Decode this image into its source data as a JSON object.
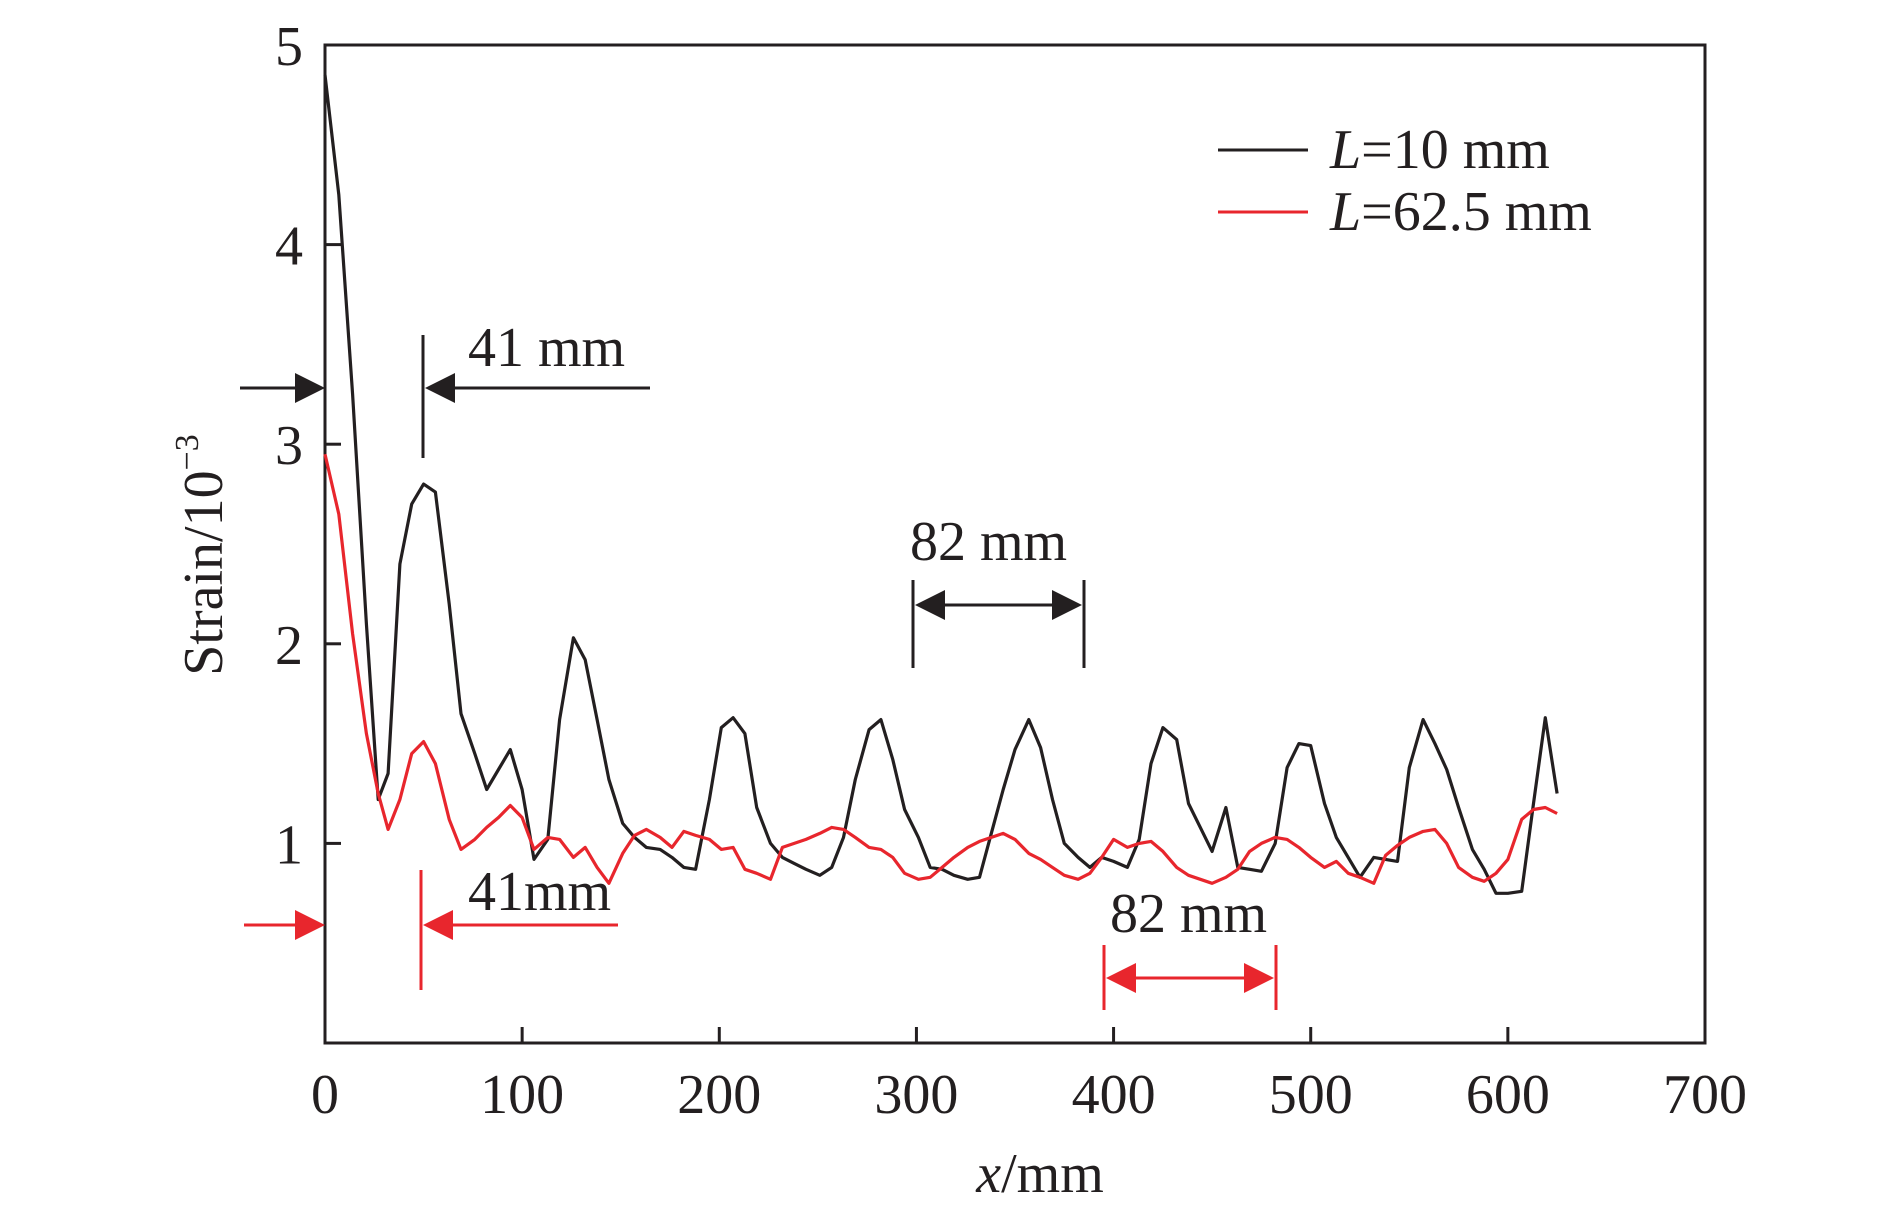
{
  "chart_data": {
    "type": "line",
    "title": "",
    "xlabel": {
      "var": "x",
      "unit": "/mm"
    },
    "ylabel": {
      "base": "Strain/10",
      "exp": "−3"
    },
    "xlim": [
      0,
      700
    ],
    "ylim": [
      0,
      5
    ],
    "x_ticks": [
      0,
      100,
      200,
      300,
      400,
      500,
      600,
      700
    ],
    "x_tick_labels": [
      "0",
      "100",
      "200",
      "300",
      "400",
      "500",
      "600",
      "700"
    ],
    "y_ticks": [
      1,
      2,
      3,
      4,
      5
    ],
    "y_tick_labels": [
      "1",
      "2",
      "3",
      "4",
      "5"
    ],
    "legend_position": "top-right",
    "grid": false,
    "series": [
      {
        "legend_var": "L",
        "legend_value": "=10 mm",
        "color": "#231f20",
        "points": [
          [
            0,
            4.85
          ],
          [
            7,
            4.25
          ],
          [
            14,
            3.25
          ],
          [
            21,
            2.1
          ],
          [
            27,
            1.22
          ],
          [
            32,
            1.35
          ],
          [
            38,
            2.4
          ],
          [
            44,
            2.7
          ],
          [
            50,
            2.8
          ],
          [
            56,
            2.76
          ],
          [
            63,
            2.2
          ],
          [
            69,
            1.65
          ],
          [
            76,
            1.45
          ],
          [
            82,
            1.27
          ],
          [
            88,
            1.37
          ],
          [
            94,
            1.47
          ],
          [
            100,
            1.27
          ],
          [
            106,
            0.92
          ],
          [
            113,
            1.02
          ],
          [
            119,
            1.62
          ],
          [
            126,
            2.03
          ],
          [
            132,
            1.92
          ],
          [
            138,
            1.62
          ],
          [
            144,
            1.32
          ],
          [
            151,
            1.1
          ],
          [
            157,
            1.03
          ],
          [
            163,
            0.98
          ],
          [
            170,
            0.97
          ],
          [
            176,
            0.93
          ],
          [
            182,
            0.88
          ],
          [
            188,
            0.87
          ],
          [
            195,
            1.22
          ],
          [
            201,
            1.58
          ],
          [
            207,
            1.63
          ],
          [
            213,
            1.55
          ],
          [
            219,
            1.18
          ],
          [
            226,
            1.0
          ],
          [
            232,
            0.93
          ],
          [
            238,
            0.9
          ],
          [
            244,
            0.87
          ],
          [
            251,
            0.84
          ],
          [
            257,
            0.88
          ],
          [
            263,
            1.03
          ],
          [
            269,
            1.32
          ],
          [
            276,
            1.57
          ],
          [
            282,
            1.62
          ],
          [
            288,
            1.42
          ],
          [
            294,
            1.17
          ],
          [
            301,
            1.03
          ],
          [
            307,
            0.88
          ],
          [
            313,
            0.87
          ],
          [
            319,
            0.84
          ],
          [
            326,
            0.82
          ],
          [
            332,
            0.83
          ],
          [
            338,
            1.05
          ],
          [
            344,
            1.27
          ],
          [
            350,
            1.47
          ],
          [
            357,
            1.62
          ],
          [
            363,
            1.48
          ],
          [
            369,
            1.22
          ],
          [
            375,
            1.0
          ],
          [
            382,
            0.93
          ],
          [
            388,
            0.88
          ],
          [
            394,
            0.93
          ],
          [
            400,
            0.91
          ],
          [
            407,
            0.88
          ],
          [
            413,
            1.02
          ],
          [
            419,
            1.4
          ],
          [
            425,
            1.58
          ],
          [
            432,
            1.52
          ],
          [
            438,
            1.2
          ],
          [
            444,
            1.08
          ],
          [
            450,
            0.96
          ],
          [
            457,
            1.18
          ],
          [
            463,
            0.88
          ],
          [
            469,
            0.87
          ],
          [
            475,
            0.86
          ],
          [
            482,
            1.0
          ],
          [
            488,
            1.38
          ],
          [
            494,
            1.5
          ],
          [
            500,
            1.49
          ],
          [
            507,
            1.2
          ],
          [
            513,
            1.03
          ],
          [
            519,
            0.93
          ],
          [
            525,
            0.83
          ],
          [
            532,
            0.93
          ],
          [
            538,
            0.92
          ],
          [
            544,
            0.91
          ],
          [
            550,
            1.38
          ],
          [
            557,
            1.62
          ],
          [
            563,
            1.5
          ],
          [
            569,
            1.37
          ],
          [
            575,
            1.18
          ],
          [
            582,
            0.97
          ],
          [
            588,
            0.87
          ],
          [
            594,
            0.75
          ],
          [
            600,
            0.75
          ],
          [
            607,
            0.76
          ],
          [
            613,
            1.2
          ],
          [
            619,
            1.63
          ],
          [
            625,
            1.25
          ]
        ]
      },
      {
        "legend_var": "L",
        "legend_value": "=62.5 mm",
        "color": "#e8262d",
        "points": [
          [
            0,
            2.95
          ],
          [
            7,
            2.65
          ],
          [
            14,
            2.05
          ],
          [
            21,
            1.55
          ],
          [
            27,
            1.25
          ],
          [
            32,
            1.07
          ],
          [
            38,
            1.22
          ],
          [
            44,
            1.45
          ],
          [
            50,
            1.51
          ],
          [
            56,
            1.4
          ],
          [
            63,
            1.12
          ],
          [
            69,
            0.97
          ],
          [
            76,
            1.02
          ],
          [
            82,
            1.08
          ],
          [
            88,
            1.13
          ],
          [
            94,
            1.19
          ],
          [
            100,
            1.13
          ],
          [
            106,
            0.97
          ],
          [
            113,
            1.03
          ],
          [
            119,
            1.02
          ],
          [
            126,
            0.93
          ],
          [
            132,
            0.98
          ],
          [
            138,
            0.88
          ],
          [
            144,
            0.8
          ],
          [
            151,
            0.95
          ],
          [
            157,
            1.04
          ],
          [
            163,
            1.07
          ],
          [
            170,
            1.03
          ],
          [
            176,
            0.98
          ],
          [
            182,
            1.06
          ],
          [
            188,
            1.04
          ],
          [
            195,
            1.02
          ],
          [
            201,
            0.97
          ],
          [
            207,
            0.98
          ],
          [
            213,
            0.87
          ],
          [
            219,
            0.85
          ],
          [
            226,
            0.82
          ],
          [
            232,
            0.98
          ],
          [
            238,
            1.0
          ],
          [
            244,
            1.02
          ],
          [
            251,
            1.05
          ],
          [
            257,
            1.08
          ],
          [
            263,
            1.07
          ],
          [
            269,
            1.03
          ],
          [
            276,
            0.98
          ],
          [
            282,
            0.97
          ],
          [
            288,
            0.93
          ],
          [
            294,
            0.85
          ],
          [
            301,
            0.82
          ],
          [
            307,
            0.83
          ],
          [
            313,
            0.88
          ],
          [
            319,
            0.93
          ],
          [
            326,
            0.98
          ],
          [
            332,
            1.01
          ],
          [
            338,
            1.03
          ],
          [
            344,
            1.05
          ],
          [
            350,
            1.02
          ],
          [
            357,
            0.95
          ],
          [
            363,
            0.92
          ],
          [
            369,
            0.88
          ],
          [
            375,
            0.84
          ],
          [
            382,
            0.82
          ],
          [
            388,
            0.85
          ],
          [
            394,
            0.93
          ],
          [
            400,
            1.02
          ],
          [
            407,
            0.98
          ],
          [
            413,
            1.0
          ],
          [
            419,
            1.01
          ],
          [
            425,
            0.96
          ],
          [
            432,
            0.88
          ],
          [
            438,
            0.84
          ],
          [
            444,
            0.82
          ],
          [
            450,
            0.8
          ],
          [
            457,
            0.83
          ],
          [
            463,
            0.87
          ],
          [
            469,
            0.96
          ],
          [
            475,
            1.0
          ],
          [
            482,
            1.03
          ],
          [
            488,
            1.02
          ],
          [
            494,
            0.98
          ],
          [
            500,
            0.93
          ],
          [
            507,
            0.88
          ],
          [
            513,
            0.91
          ],
          [
            519,
            0.85
          ],
          [
            525,
            0.83
          ],
          [
            532,
            0.8
          ],
          [
            538,
            0.94
          ],
          [
            544,
            0.99
          ],
          [
            550,
            1.03
          ],
          [
            557,
            1.06
          ],
          [
            563,
            1.07
          ],
          [
            569,
            1.0
          ],
          [
            575,
            0.88
          ],
          [
            582,
            0.83
          ],
          [
            588,
            0.81
          ],
          [
            594,
            0.85
          ],
          [
            600,
            0.92
          ],
          [
            607,
            1.12
          ],
          [
            613,
            1.17
          ],
          [
            619,
            1.18
          ],
          [
            625,
            1.15
          ]
        ]
      }
    ],
    "annotations": [
      {
        "text": "41 mm",
        "color": "#231f20",
        "x": 75,
        "y": 3.08
      },
      {
        "text": "82 mm",
        "color": "#231f20",
        "x": 343,
        "y": 1.43
      },
      {
        "text": "41mm",
        "color": "#e8262d",
        "x": 68,
        "y": 0.58
      },
      {
        "text": "82 mm",
        "color": "#e8262d",
        "x": 440,
        "y": 0.55
      }
    ]
  }
}
